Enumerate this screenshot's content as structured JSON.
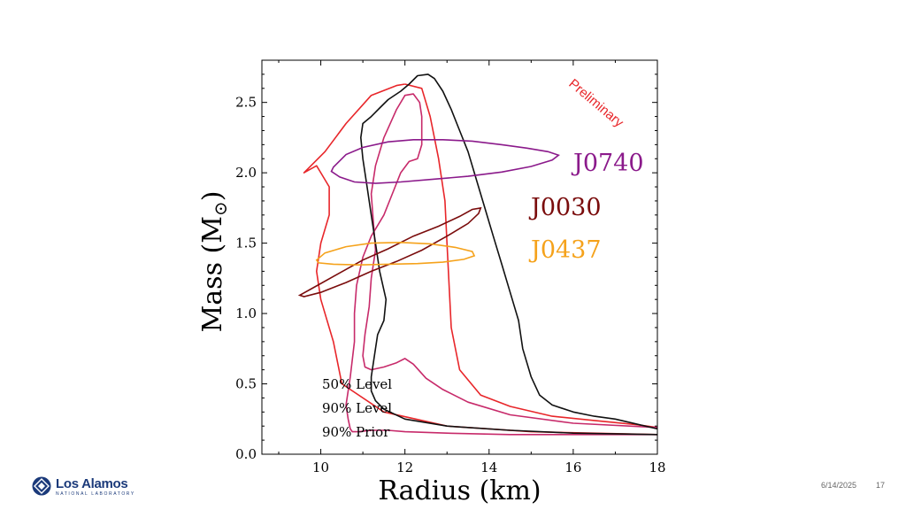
{
  "chart_data": {
    "type": "line",
    "xlabel": "Radius (km)",
    "ylabel": "Mass (M",
    "ylabel_suffix": ")",
    "xlim": [
      8.6,
      18
    ],
    "ylim": [
      0,
      2.8
    ],
    "xticks": [
      10,
      12,
      14,
      16,
      18
    ],
    "yticks": [
      0.0,
      0.5,
      1.0,
      1.5,
      2.0,
      2.5
    ],
    "yticks_labels": [
      "0.0",
      "0.5",
      "1.0",
      "1.5",
      "2.0",
      "2.5"
    ],
    "grid": false,
    "legend": {
      "placement": "lower-left",
      "entries": [
        "50% Level",
        "90% Level",
        "90% Prior"
      ]
    },
    "watermark": "Preliminary",
    "series": [
      {
        "color": "#e8262a",
        "x": [
          18.0,
          15.0,
          13.0,
          11.5,
          10.5,
          10.3,
          10.0,
          9.9,
          10.0,
          10.2,
          10.2,
          10.0,
          9.9,
          9.6,
          10.1,
          10.6,
          11.2,
          11.8,
          12.0
        ],
        "y": [
          0.14,
          0.16,
          0.2,
          0.3,
          0.5,
          0.8,
          1.1,
          1.3,
          1.5,
          1.7,
          1.9,
          2.0,
          2.05,
          2.0,
          2.15,
          2.35,
          2.55,
          2.62,
          2.63
        ]
      },
      {
        "color": "#e8262a",
        "x": [
          12.0,
          12.4,
          12.6,
          12.8,
          12.95,
          13.0,
          13.05,
          13.1,
          13.3,
          13.8,
          14.5,
          15.5,
          16.5,
          17.5,
          18.0
        ],
        "y": [
          2.63,
          2.6,
          2.4,
          2.1,
          1.8,
          1.5,
          1.2,
          0.9,
          0.6,
          0.42,
          0.34,
          0.27,
          0.24,
          0.21,
          0.19
        ]
      },
      {
        "color": "#c72a6a",
        "x": [
          18.0,
          16.0,
          14.5,
          13.5,
          12.9,
          12.5,
          12.2,
          12.0,
          11.8,
          11.5,
          11.2,
          11.05,
          11.0,
          11.05,
          11.15,
          11.2,
          11.3,
          11.25,
          11.2,
          11.3,
          11.5,
          11.8,
          12.0,
          12.2,
          12.35,
          12.4,
          12.4,
          12.3,
          12.1,
          11.9,
          11.7,
          11.5,
          11.2,
          11.0,
          10.85,
          10.8,
          10.8,
          10.7,
          10.6,
          10.65,
          10.7,
          10.75,
          10.9,
          11.2,
          11.6,
          12.0,
          13.0,
          14.5,
          16.0,
          18.0
        ],
        "y": [
          0.19,
          0.22,
          0.28,
          0.37,
          0.46,
          0.54,
          0.64,
          0.68,
          0.65,
          0.62,
          0.6,
          0.62,
          0.7,
          0.85,
          1.05,
          1.25,
          1.45,
          1.65,
          1.85,
          2.05,
          2.25,
          2.45,
          2.55,
          2.56,
          2.5,
          2.4,
          2.2,
          2.1,
          2.08,
          2.0,
          1.85,
          1.7,
          1.55,
          1.4,
          1.2,
          1.0,
          0.8,
          0.55,
          0.35,
          0.25,
          0.18,
          0.16,
          0.16,
          0.17,
          0.17,
          0.16,
          0.15,
          0.14,
          0.14,
          0.14
        ]
      },
      {
        "color": "#111111",
        "x": [
          18.0,
          17.0,
          16.5,
          16.0,
          15.5,
          15.2,
          15.0,
          14.8,
          14.7,
          14.5,
          14.3,
          14.1,
          13.9,
          13.7,
          13.5,
          13.3,
          13.1,
          12.9,
          12.7,
          12.55,
          12.3,
          12.1,
          11.9,
          11.6,
          11.4,
          11.2,
          11.0,
          10.95,
          11.0,
          11.1,
          11.2,
          11.3,
          11.4,
          11.55,
          11.5,
          11.35,
          11.3,
          11.25,
          11.2,
          11.2,
          11.3,
          11.5,
          12.0,
          13.0,
          14.5,
          16.0,
          18.0
        ],
        "y": [
          0.18,
          0.25,
          0.27,
          0.3,
          0.35,
          0.42,
          0.55,
          0.75,
          0.95,
          1.15,
          1.35,
          1.55,
          1.75,
          1.95,
          2.15,
          2.3,
          2.45,
          2.58,
          2.67,
          2.7,
          2.69,
          2.63,
          2.58,
          2.52,
          2.46,
          2.4,
          2.35,
          2.25,
          2.1,
          1.9,
          1.7,
          1.5,
          1.3,
          1.1,
          0.95,
          0.85,
          0.75,
          0.65,
          0.55,
          0.45,
          0.38,
          0.32,
          0.25,
          0.2,
          0.17,
          0.15,
          0.14
        ]
      }
    ],
    "ellipses": [
      {
        "label": "J0740",
        "color": "#8b1a8b",
        "outline": [
          [
            10.3,
            2.04
          ],
          [
            10.6,
            2.13
          ],
          [
            11.0,
            2.18
          ],
          [
            11.6,
            2.22
          ],
          [
            12.2,
            2.235
          ],
          [
            12.9,
            2.235
          ],
          [
            13.6,
            2.225
          ],
          [
            14.3,
            2.2
          ],
          [
            14.9,
            2.175
          ],
          [
            15.4,
            2.15
          ],
          [
            15.65,
            2.125
          ],
          [
            15.5,
            2.09
          ],
          [
            15.0,
            2.045
          ],
          [
            14.3,
            2.005
          ],
          [
            13.5,
            1.975
          ],
          [
            12.7,
            1.955
          ],
          [
            11.9,
            1.935
          ],
          [
            11.3,
            1.925
          ],
          [
            10.8,
            1.935
          ],
          [
            10.45,
            1.97
          ],
          [
            10.25,
            2.01
          ],
          [
            10.3,
            2.04
          ]
        ]
      },
      {
        "label": "J0030",
        "color": "#7a0c0c",
        "outline": [
          [
            9.5,
            1.13
          ],
          [
            9.8,
            1.18
          ],
          [
            10.4,
            1.28
          ],
          [
            11.0,
            1.38
          ],
          [
            11.6,
            1.46
          ],
          [
            12.2,
            1.55
          ],
          [
            12.8,
            1.62
          ],
          [
            13.3,
            1.69
          ],
          [
            13.6,
            1.74
          ],
          [
            13.8,
            1.75
          ],
          [
            13.75,
            1.71
          ],
          [
            13.5,
            1.64
          ],
          [
            13.0,
            1.55
          ],
          [
            12.4,
            1.45
          ],
          [
            11.8,
            1.37
          ],
          [
            11.2,
            1.3
          ],
          [
            10.6,
            1.22
          ],
          [
            10.0,
            1.15
          ],
          [
            9.6,
            1.12
          ],
          [
            9.5,
            1.13
          ]
        ]
      },
      {
        "label": "J0437",
        "color": "#f5a21b",
        "outline": [
          [
            9.9,
            1.38
          ],
          [
            10.1,
            1.43
          ],
          [
            10.6,
            1.475
          ],
          [
            11.2,
            1.5
          ],
          [
            11.9,
            1.505
          ],
          [
            12.6,
            1.495
          ],
          [
            13.2,
            1.47
          ],
          [
            13.6,
            1.44
          ],
          [
            13.65,
            1.41
          ],
          [
            13.4,
            1.385
          ],
          [
            12.9,
            1.365
          ],
          [
            12.3,
            1.355
          ],
          [
            11.6,
            1.35
          ],
          [
            10.9,
            1.345
          ],
          [
            10.3,
            1.35
          ],
          [
            9.95,
            1.36
          ],
          [
            9.9,
            1.38
          ]
        ]
      }
    ]
  },
  "footer": {
    "date": "6/14/2025",
    "page": "17"
  },
  "logo": {
    "main": "Los Alamos",
    "sub": "NATIONAL LABORATORY"
  }
}
